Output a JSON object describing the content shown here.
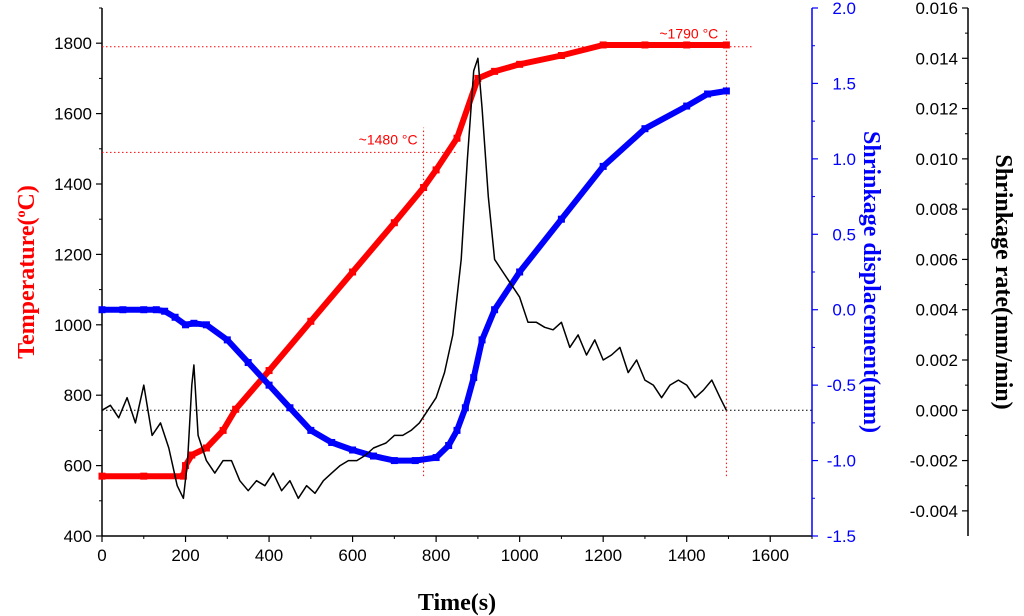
{
  "chart_data": {
    "type": "line",
    "xlabel": "Time(s)",
    "xlim": [
      0,
      1700
    ],
    "x_ticks": [
      "0",
      "200",
      "400",
      "600",
      "800",
      "1000",
      "1200",
      "1400",
      "1600"
    ],
    "left_axis": {
      "label_main": "Temperature(",
      "label_sup": "o",
      "label_tail": "C)",
      "lim": [
        400,
        1900
      ],
      "ticks": [
        "400",
        "600",
        "800",
        "1000",
        "1200",
        "1400",
        "1600",
        "1800"
      ],
      "color": "#ff0000"
    },
    "right_axis_1": {
      "label": "Shrinkage displacement(mm)",
      "lim": [
        -1.5,
        2.0
      ],
      "ticks": [
        "-1.5",
        "-1.0",
        "-0.5",
        "0.0",
        "0.5",
        "1.0",
        "1.5",
        "2.0"
      ],
      "color": "#0000ff"
    },
    "right_axis_2": {
      "label": "Shrinkage rate(mm/min)",
      "lim": [
        -0.005,
        0.016
      ],
      "ticks": [
        "-0.004",
        "-0.002",
        "0.000",
        "0.002",
        "0.004",
        "0.006",
        "0.008",
        "0.010",
        "0.012",
        "0.014",
        "0.016"
      ],
      "color": "#000000"
    },
    "series": [
      {
        "name": "Temperature",
        "axis": "left",
        "color": "#ff0000",
        "marker": "square",
        "points": [
          [
            0,
            570
          ],
          [
            100,
            570
          ],
          [
            195,
            570
          ],
          [
            200,
            600
          ],
          [
            215,
            630
          ],
          [
            250,
            650
          ],
          [
            290,
            700
          ],
          [
            320,
            760
          ],
          [
            400,
            870
          ],
          [
            500,
            1010
          ],
          [
            600,
            1150
          ],
          [
            700,
            1290
          ],
          [
            770,
            1390
          ],
          [
            800,
            1440
          ],
          [
            850,
            1530
          ],
          [
            900,
            1700
          ],
          [
            940,
            1720
          ],
          [
            1000,
            1740
          ],
          [
            1100,
            1765
          ],
          [
            1200,
            1795
          ],
          [
            1300,
            1795
          ],
          [
            1400,
            1795
          ],
          [
            1495,
            1795
          ]
        ]
      },
      {
        "name": "Shrinkage displacement",
        "axis": "right_1",
        "color": "#0000ff",
        "marker": "square",
        "points": [
          [
            0,
            0.0
          ],
          [
            50,
            0.0
          ],
          [
            100,
            0.0
          ],
          [
            130,
            0.0
          ],
          [
            150,
            -0.01
          ],
          [
            175,
            -0.05
          ],
          [
            200,
            -0.1
          ],
          [
            220,
            -0.09
          ],
          [
            250,
            -0.1
          ],
          [
            300,
            -0.2
          ],
          [
            350,
            -0.35
          ],
          [
            400,
            -0.5
          ],
          [
            450,
            -0.65
          ],
          [
            500,
            -0.8
          ],
          [
            550,
            -0.88
          ],
          [
            600,
            -0.93
          ],
          [
            650,
            -0.97
          ],
          [
            700,
            -1.0
          ],
          [
            750,
            -1.0
          ],
          [
            800,
            -0.98
          ],
          [
            830,
            -0.9
          ],
          [
            850,
            -0.8
          ],
          [
            870,
            -0.65
          ],
          [
            890,
            -0.45
          ],
          [
            910,
            -0.2
          ],
          [
            940,
            0.0
          ],
          [
            1000,
            0.25
          ],
          [
            1100,
            0.6
          ],
          [
            1200,
            0.95
          ],
          [
            1300,
            1.2
          ],
          [
            1400,
            1.35
          ],
          [
            1450,
            1.43
          ],
          [
            1495,
            1.45
          ]
        ]
      },
      {
        "name": "Shrinkage rate",
        "axis": "right_2",
        "color": "#000000",
        "marker": "none",
        "points": [
          [
            0,
            0.0
          ],
          [
            20,
            0.0002
          ],
          [
            40,
            -0.0003
          ],
          [
            60,
            0.0005
          ],
          [
            80,
            -0.0005
          ],
          [
            100,
            0.001
          ],
          [
            120,
            -0.001
          ],
          [
            140,
            -0.0005
          ],
          [
            160,
            -0.0015
          ],
          [
            180,
            -0.003
          ],
          [
            195,
            -0.0035
          ],
          [
            205,
            -0.002
          ],
          [
            215,
            0.001
          ],
          [
            220,
            0.0018
          ],
          [
            230,
            -0.001
          ],
          [
            250,
            -0.002
          ],
          [
            270,
            -0.0025
          ],
          [
            290,
            -0.002
          ],
          [
            310,
            -0.002
          ],
          [
            330,
            -0.0028
          ],
          [
            350,
            -0.0032
          ],
          [
            370,
            -0.0028
          ],
          [
            390,
            -0.003
          ],
          [
            410,
            -0.0025
          ],
          [
            430,
            -0.0032
          ],
          [
            450,
            -0.0028
          ],
          [
            470,
            -0.0035
          ],
          [
            490,
            -0.003
          ],
          [
            510,
            -0.0033
          ],
          [
            530,
            -0.0028
          ],
          [
            550,
            -0.0025
          ],
          [
            570,
            -0.0022
          ],
          [
            590,
            -0.002
          ],
          [
            610,
            -0.002
          ],
          [
            630,
            -0.0018
          ],
          [
            650,
            -0.0015
          ],
          [
            680,
            -0.0013
          ],
          [
            700,
            -0.001
          ],
          [
            720,
            -0.001
          ],
          [
            740,
            -0.0008
          ],
          [
            760,
            -0.0005
          ],
          [
            780,
            0.0
          ],
          [
            800,
            0.0005
          ],
          [
            820,
            0.0015
          ],
          [
            840,
            0.003
          ],
          [
            860,
            0.006
          ],
          [
            875,
            0.01
          ],
          [
            890,
            0.0135
          ],
          [
            900,
            0.014
          ],
          [
            910,
            0.012
          ],
          [
            925,
            0.0085
          ],
          [
            940,
            0.006
          ],
          [
            960,
            0.0055
          ],
          [
            980,
            0.005
          ],
          [
            1000,
            0.0045
          ],
          [
            1020,
            0.0035
          ],
          [
            1040,
            0.0035
          ],
          [
            1060,
            0.0033
          ],
          [
            1080,
            0.0032
          ],
          [
            1100,
            0.0035
          ],
          [
            1120,
            0.0025
          ],
          [
            1140,
            0.003
          ],
          [
            1160,
            0.0022
          ],
          [
            1180,
            0.0028
          ],
          [
            1200,
            0.002
          ],
          [
            1220,
            0.0022
          ],
          [
            1240,
            0.0025
          ],
          [
            1260,
            0.0015
          ],
          [
            1280,
            0.002
          ],
          [
            1300,
            0.0012
          ],
          [
            1320,
            0.001
          ],
          [
            1340,
            0.0005
          ],
          [
            1360,
            0.001
          ],
          [
            1380,
            0.0012
          ],
          [
            1400,
            0.001
          ],
          [
            1420,
            0.0005
          ],
          [
            1440,
            0.0008
          ],
          [
            1460,
            0.0012
          ],
          [
            1480,
            0.0005
          ],
          [
            1495,
            0.0
          ]
        ]
      }
    ],
    "annotations": [
      {
        "text": "~1480 °C",
        "x": 770,
        "y": 1490,
        "color": "#ff0000"
      },
      {
        "text": "~1790 °C",
        "x": 1490,
        "y": 1790,
        "color": "#ff0000"
      }
    ],
    "reference_lines": [
      {
        "axis": "left",
        "y": 1490,
        "x_from": 0,
        "x_to": 850,
        "color": "#ff0000"
      },
      {
        "axis": "left",
        "y": 1790,
        "x_from": 0,
        "x_to": 1560,
        "color": "#ff0000"
      },
      {
        "axis": "x",
        "x": 770,
        "y_from": 570,
        "y_to": 1560,
        "color": "#ff0000"
      },
      {
        "axis": "x",
        "x": 1495,
        "y_from": 570,
        "y_to": 1840,
        "color": "#ff0000"
      },
      {
        "axis": "right_2",
        "y": 0.0,
        "x_from": 0,
        "x_to": 1700,
        "color": "#000000"
      }
    ]
  }
}
